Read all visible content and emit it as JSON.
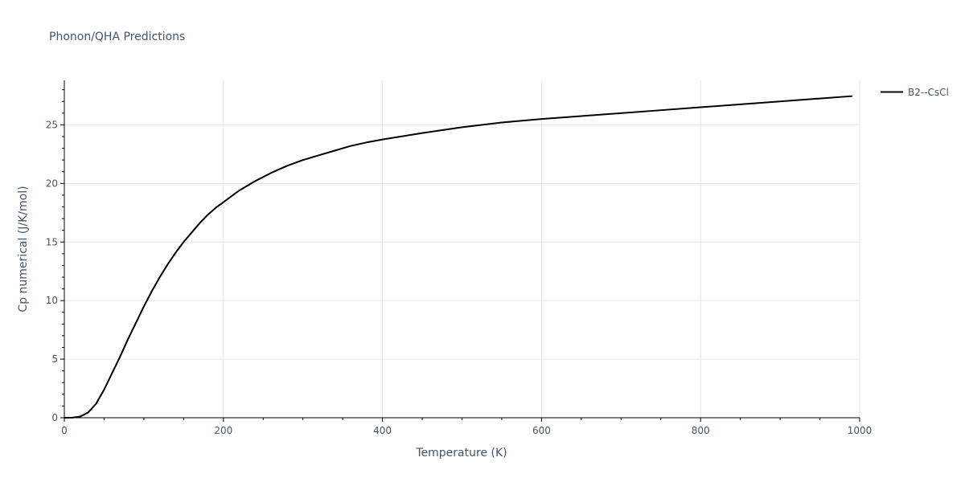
{
  "chart_data": {
    "type": "line",
    "title": "Phonon/QHA Predictions",
    "xlabel": "Temperature (K)",
    "ylabel": "Cp numerical (J/K/mol)",
    "xlim": [
      0,
      1000
    ],
    "ylim": [
      0,
      28.8
    ],
    "x_ticks": [
      0,
      200,
      400,
      600,
      800,
      1000
    ],
    "y_ticks": [
      0,
      5,
      10,
      15,
      20,
      25
    ],
    "grid": true,
    "legend_position": "top-right",
    "series": [
      {
        "name": "B2--CsCl",
        "color": "#000000",
        "x": [
          0,
          10,
          20,
          30,
          40,
          50,
          60,
          70,
          80,
          90,
          100,
          110,
          120,
          130,
          140,
          150,
          160,
          170,
          180,
          190,
          200,
          220,
          240,
          260,
          280,
          300,
          320,
          340,
          360,
          380,
          400,
          450,
          500,
          550,
          600,
          650,
          700,
          750,
          800,
          850,
          900,
          950,
          990
        ],
        "y": [
          0,
          0.01,
          0.1,
          0.45,
          1.2,
          2.4,
          3.8,
          5.2,
          6.7,
          8.1,
          9.5,
          10.8,
          12.0,
          13.1,
          14.1,
          15.0,
          15.8,
          16.6,
          17.3,
          17.9,
          18.4,
          19.4,
          20.2,
          20.9,
          21.5,
          22.0,
          22.4,
          22.8,
          23.2,
          23.5,
          23.75,
          24.3,
          24.8,
          25.2,
          25.5,
          25.75,
          26.0,
          26.25,
          26.5,
          26.75,
          27.0,
          27.25,
          27.45
        ]
      }
    ]
  }
}
